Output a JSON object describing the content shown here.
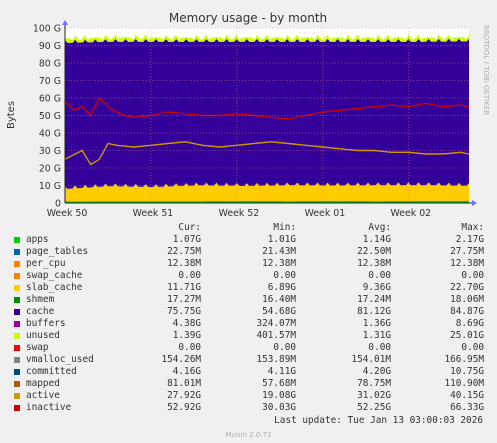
{
  "chart_data": {
    "type": "area",
    "title": "Memory usage - by month",
    "ylabel": "Bytes",
    "side_label": "RRDTOOL / TOBI OETIKER",
    "ylim": [
      0,
      100
    ],
    "yticks": [
      "0",
      "10 G",
      "20 G",
      "30 G",
      "40 G",
      "50 G",
      "60 G",
      "70 G",
      "80 G",
      "90 G",
      "100 G"
    ],
    "xticks": [
      "Week 50",
      "Week 51",
      "Week 52",
      "Week 01",
      "Week 02"
    ],
    "xlim": [
      0,
      47
    ],
    "x_tick_positions": [
      0,
      10,
      20,
      30,
      40
    ],
    "stacked_layers": [
      {
        "name": "apps",
        "color": "#00cc00",
        "values_g": [
          1.0,
          1.1,
          1.1,
          1.1,
          1.2,
          1.1,
          1.2,
          1.1,
          1.2,
          1.2
        ]
      },
      {
        "name": "slab_cache",
        "color": "#ffcc00",
        "values_g": [
          7.0,
          8.5,
          8.0,
          9.0,
          8.5,
          9.0,
          8.8,
          9.0,
          9.0,
          8.6
        ]
      },
      {
        "name": "cache",
        "color": "#330099",
        "values_g": [
          83.5,
          82.5,
          83.0,
          82.0,
          82.5,
          82.0,
          82.2,
          82.0,
          82.0,
          82.5
        ]
      },
      {
        "name": "unused",
        "color": "#ccff00",
        "values_g": [
          2.5,
          2.4,
          2.4,
          2.4,
          2.3,
          2.4,
          2.3,
          2.4,
          2.3,
          2.4
        ]
      }
    ],
    "line_series": [
      {
        "name": "active",
        "color": "#cc9900",
        "x": [
          0,
          2,
          3,
          4,
          5,
          6,
          8,
          10,
          12,
          14,
          16,
          18,
          20,
          22,
          24,
          26,
          28,
          30,
          32,
          34,
          36,
          38,
          40,
          42,
          44,
          46,
          47
        ],
        "values_g": [
          25,
          30,
          22,
          25,
          34,
          33,
          32,
          33,
          34,
          35,
          33,
          32,
          33,
          34,
          35,
          34,
          33,
          32,
          31,
          30,
          30,
          29,
          29,
          28,
          28,
          29,
          28
        ]
      },
      {
        "name": "inactive",
        "color": "#cc0000",
        "x": [
          0,
          1,
          2,
          3,
          4,
          5,
          6,
          7,
          8,
          10,
          12,
          14,
          16,
          18,
          20,
          22,
          24,
          26,
          28,
          30,
          32,
          34,
          36,
          38,
          40,
          42,
          44,
          46,
          47
        ],
        "values_g": [
          58,
          53,
          55,
          50,
          60,
          55,
          52,
          50,
          49,
          50,
          52,
          51,
          50,
          50,
          51,
          50,
          49,
          48,
          50,
          52,
          53,
          54,
          55,
          56,
          55,
          57,
          55,
          56,
          55
        ]
      }
    ],
    "legend_columns": [
      "Cur:",
      "Min:",
      "Avg:",
      "Max:"
    ],
    "legend": [
      {
        "name": "apps",
        "color": "#00cc00",
        "cur": "1.07G",
        "min": "1.01G",
        "avg": "1.14G",
        "max": "2.17G"
      },
      {
        "name": "page_tables",
        "color": "#0066b3",
        "cur": "22.75M",
        "min": "21.43M",
        "avg": "22.50M",
        "max": "27.75M"
      },
      {
        "name": "per_cpu",
        "color": "#ff8000",
        "cur": "12.38M",
        "min": "12.38M",
        "avg": "12.38M",
        "max": "12.38M"
      },
      {
        "name": "swap_cache",
        "color": "#ff8000",
        "cur": "0.00",
        "min": "0.00",
        "avg": "0.00",
        "max": "0.00"
      },
      {
        "name": "slab_cache",
        "color": "#ffcc00",
        "cur": "11.71G",
        "min": "6.89G",
        "avg": "9.36G",
        "max": "22.70G"
      },
      {
        "name": "shmem",
        "color": "#008f00",
        "cur": "17.27M",
        "min": "16.40M",
        "avg": "17.24M",
        "max": "18.06M"
      },
      {
        "name": "cache",
        "color": "#330099",
        "cur": "75.75G",
        "min": "54.68G",
        "avg": "81.12G",
        "max": "84.87G"
      },
      {
        "name": "buffers",
        "color": "#990099",
        "cur": "4.38G",
        "min": "324.07M",
        "avg": "1.36G",
        "max": "8.69G"
      },
      {
        "name": "unused",
        "color": "#ccff00",
        "cur": "1.39G",
        "min": "401.57M",
        "avg": "1.31G",
        "max": "25.01G"
      },
      {
        "name": "swap",
        "color": "#ff0000",
        "cur": "0.00",
        "min": "0.00",
        "avg": "0.00",
        "max": "0.00"
      },
      {
        "name": "vmalloc_used",
        "color": "#808080",
        "cur": "154.26M",
        "min": "153.89M",
        "avg": "154.01M",
        "max": "166.95M"
      },
      {
        "name": "committed",
        "color": "#004d80",
        "cur": "4.16G",
        "min": "4.11G",
        "avg": "4.20G",
        "max": "10.75G"
      },
      {
        "name": "mapped",
        "color": "#b35a00",
        "cur": "81.01M",
        "min": "57.68M",
        "avg": "78.75M",
        "max": "110.90M"
      },
      {
        "name": "active",
        "color": "#cc9900",
        "cur": "27.92G",
        "min": "19.08G",
        "avg": "31.02G",
        "max": "40.15G"
      },
      {
        "name": "inactive",
        "color": "#cc0000",
        "cur": "52.92G",
        "min": "30.03G",
        "avg": "52.25G",
        "max": "66.33G"
      }
    ],
    "grid": true
  },
  "footer": {
    "last_update": "Last update:  Tue Jan 13 03:00:03 2026",
    "munin_version": "Munin 2.0.73"
  }
}
